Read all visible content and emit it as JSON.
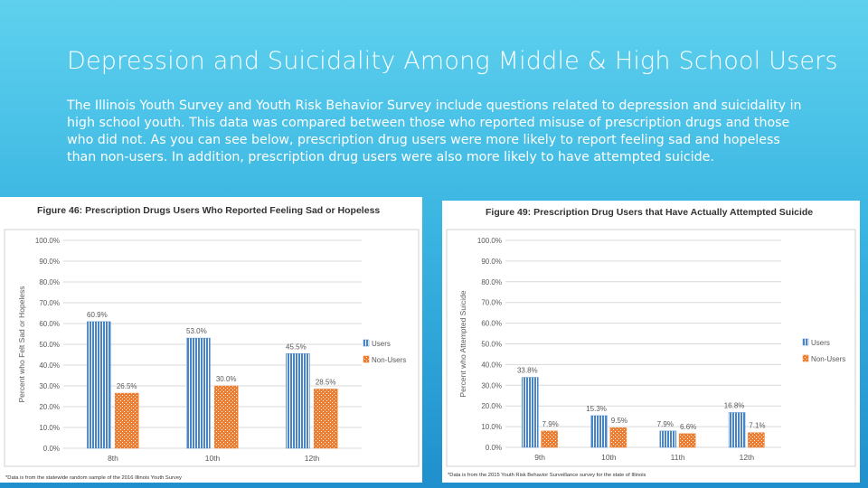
{
  "slide": {
    "title": "Depression and Suicidality Among Middle & High School Users",
    "body": "The Illinois Youth Survey and Youth Risk Behavior Survey include questions related to depression and suicidality in high school youth. This data was compared between those who reported misuse of prescription drugs and those who did not. As you can see below, prescription drug users were more likely to report feeling sad and hopeless than non-users. In addition, prescription drug users were also more likely to have attempted suicide."
  },
  "colors": {
    "users": "#4a86c5",
    "non_users": "#ed7d31",
    "grid": "#d9d9d9",
    "axis_text": "#595959"
  },
  "chart_data": [
    {
      "type": "bar",
      "title": "Figure 46: Prescription Drugs Users Who Reported Feeling Sad or Hopeless",
      "ylabel": "Percent who Felt Sad or Hopeless",
      "xlabel": "",
      "categories": [
        "8th",
        "10th",
        "12th"
      ],
      "ylim": [
        0,
        100
      ],
      "yticks": [
        "0.0%",
        "10.0%",
        "20.0%",
        "30.0%",
        "40.0%",
        "50.0%",
        "60.0%",
        "70.0%",
        "80.0%",
        "90.0%",
        "100.0%"
      ],
      "series": [
        {
          "name": "Users",
          "values": [
            60.9,
            53.0,
            45.5
          ],
          "labels": [
            "60.9%",
            "53.0%",
            "45.5%"
          ]
        },
        {
          "name": "Non-Users",
          "values": [
            26.5,
            30.0,
            28.5
          ],
          "labels": [
            "26.5%",
            "30.0%",
            "28.5%"
          ]
        }
      ],
      "legend": "right",
      "footnote": "*Data is from the statewide random sample of the 2016 Illinois Youth Survey"
    },
    {
      "type": "bar",
      "title": "Figure 49: Prescription Drug Users that Have Actually Attempted Suicide",
      "ylabel": "Percent who Attempted Suicide",
      "xlabel": "",
      "categories": [
        "9th",
        "10th",
        "11th",
        "12th"
      ],
      "ylim": [
        0,
        100
      ],
      "yticks": [
        "0.0%",
        "10.0%",
        "20.0%",
        "30.0%",
        "40.0%",
        "50.0%",
        "60.0%",
        "70.0%",
        "80.0%",
        "90.0%",
        "100.0%"
      ],
      "series": [
        {
          "name": "Users",
          "values": [
            33.8,
            15.3,
            7.9,
            16.8
          ],
          "labels": [
            "33.8%",
            "15.3%",
            "7.9%",
            "16.8%"
          ]
        },
        {
          "name": "Non-Users",
          "values": [
            7.9,
            9.5,
            6.6,
            7.1
          ],
          "labels": [
            "7.9%",
            "9.5%",
            "6.6%",
            "7.1%"
          ]
        }
      ],
      "legend": "right",
      "footnote": "*Data is from the 2015 Youth Risk Behavior Surveillance survey for the state of Illinois"
    }
  ]
}
